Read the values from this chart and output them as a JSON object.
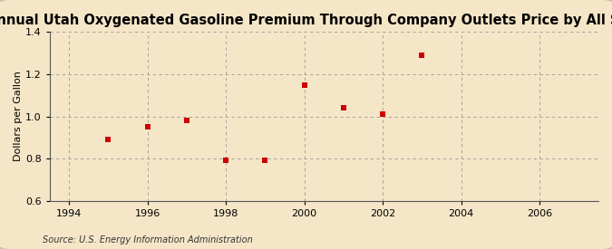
{
  "title": "Annual Utah Oxygenated Gasoline Premium Through Company Outlets Price by All Sellers",
  "ylabel": "Dollars per Gallon",
  "source": "Source: U.S. Energy Information Administration",
  "x": [
    1995,
    1996,
    1997,
    1998,
    1999,
    2000,
    2001,
    2002,
    2003
  ],
  "y": [
    0.89,
    0.95,
    0.98,
    0.79,
    0.79,
    1.15,
    1.04,
    1.01,
    1.29
  ],
  "xlim": [
    1993.5,
    2007.5
  ],
  "ylim": [
    0.6,
    1.4
  ],
  "xticks": [
    1994,
    1996,
    1998,
    2000,
    2002,
    2004,
    2006
  ],
  "yticks": [
    0.6,
    0.8,
    1.0,
    1.2,
    1.4
  ],
  "marker_color": "#cc0000",
  "marker": "s",
  "marker_size": 4,
  "grid_color": "#999999",
  "background_color": "#f5e6c8",
  "title_fontsize": 10.5,
  "label_fontsize": 8,
  "tick_fontsize": 8,
  "source_fontsize": 7
}
